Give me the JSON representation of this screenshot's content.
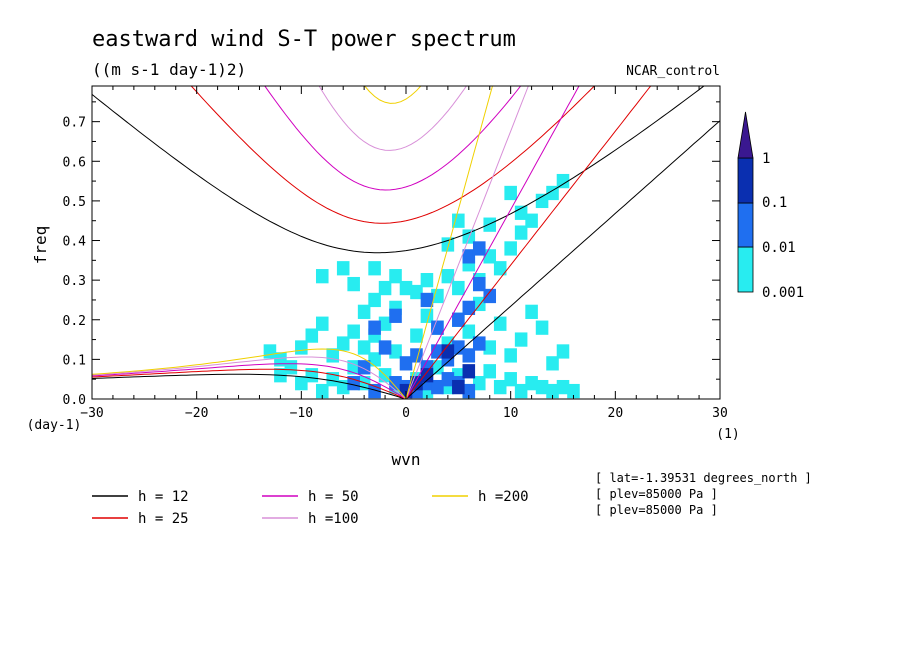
{
  "chart_data": {
    "type": "heatmap",
    "title": "eastward wind S-T power spectrum",
    "subtitle": "((m s-1 day-1)2)",
    "run_label": "NCAR_control",
    "xlabel": "wvn",
    "ylabel": "freq",
    "x_unit": "(1)",
    "y_unit": "(day-1)",
    "xlim": [
      -30,
      30
    ],
    "ylim": [
      0,
      0.79
    ],
    "x_ticks": [
      "-30",
      "-20",
      "-10",
      "0",
      "10",
      "20",
      "30"
    ],
    "y_ticks": [
      "0.0",
      "0.1",
      "0.2",
      "0.3",
      "0.4",
      "0.5",
      "0.6",
      "0.7"
    ],
    "colorbar": {
      "labels": [
        "1",
        "0.1",
        "0.01",
        "0.001"
      ],
      "colors": [
        "#3a1890",
        "#0a2fb0",
        "#1f6ff0",
        "#28ecf0"
      ]
    },
    "dispersion_curves": [
      {
        "label": "h = 12",
        "color": "#000000"
      },
      {
        "label": "h = 25",
        "color": "#e00000"
      },
      {
        "label": "h = 50",
        "color": "#d000c0"
      },
      {
        "label": "h =100",
        "color": "#d890d8"
      },
      {
        "label": "h =200",
        "color": "#f0d000"
      }
    ],
    "meta_lines": [
      "[ lat=-1.39531 degrees_north ]",
      "[ plev=85000 Pa ]",
      "[ plev=85000 Pa ]"
    ],
    "power_cells": [
      {
        "k": -13,
        "f": 0.12,
        "level": 0
      },
      {
        "k": -12,
        "f": 0.1,
        "level": 0
      },
      {
        "k": -11,
        "f": 0.08,
        "level": 0
      },
      {
        "k": -10,
        "f": 0.04,
        "level": 0
      },
      {
        "k": -9,
        "f": 0.06,
        "level": 0
      },
      {
        "k": -8,
        "f": 0.02,
        "level": 0
      },
      {
        "k": -7,
        "f": 0.05,
        "level": 0
      },
      {
        "k": -6,
        "f": 0.03,
        "level": 0
      },
      {
        "k": -5,
        "f": 0.08,
        "level": 0
      },
      {
        "k": -4,
        "f": 0.04,
        "level": 0
      },
      {
        "k": -3,
        "f": 0.1,
        "level": 0
      },
      {
        "k": -2,
        "f": 0.06,
        "level": 0
      },
      {
        "k": -1,
        "f": 0.03,
        "level": 0
      },
      {
        "k": 1,
        "f": 0.05,
        "level": 0
      },
      {
        "k": 2,
        "f": 0.02,
        "level": 0
      },
      {
        "k": 3,
        "f": 0.08,
        "level": 0
      },
      {
        "k": 4,
        "f": 0.03,
        "level": 0
      },
      {
        "k": 5,
        "f": 0.06,
        "level": 0
      },
      {
        "k": 6,
        "f": 0.02,
        "level": 0
      },
      {
        "k": 7,
        "f": 0.04,
        "level": 0
      },
      {
        "k": 8,
        "f": 0.07,
        "level": 0
      },
      {
        "k": 9,
        "f": 0.03,
        "level": 0
      },
      {
        "k": 10,
        "f": 0.05,
        "level": 0
      },
      {
        "k": 11,
        "f": 0.02,
        "level": 0
      },
      {
        "k": 12,
        "f": 0.04,
        "level": 0
      },
      {
        "k": 13,
        "f": 0.03,
        "level": 0
      },
      {
        "k": 14,
        "f": 0.02,
        "level": 0
      },
      {
        "k": 15,
        "f": 0.03,
        "level": 0
      },
      {
        "k": -7,
        "f": 0.11,
        "level": 0
      },
      {
        "k": -6,
        "f": 0.14,
        "level": 0
      },
      {
        "k": -4,
        "f": 0.13,
        "level": 0
      },
      {
        "k": -3,
        "f": 0.16,
        "level": 0
      },
      {
        "k": -2,
        "f": 0.19,
        "level": 0
      },
      {
        "k": -1,
        "f": 0.12,
        "level": 0
      },
      {
        "k": 1,
        "f": 0.16,
        "level": 0
      },
      {
        "k": 2,
        "f": 0.21,
        "level": 0
      },
      {
        "k": 3,
        "f": 0.18,
        "level": 0
      },
      {
        "k": 4,
        "f": 0.14,
        "level": 0
      },
      {
        "k": 5,
        "f": 0.2,
        "level": 0
      },
      {
        "k": 6,
        "f": 0.17,
        "level": 0
      },
      {
        "k": 7,
        "f": 0.24,
        "level": 0
      },
      {
        "k": 8,
        "f": 0.13,
        "level": 0
      },
      {
        "k": 9,
        "f": 0.19,
        "level": 0
      },
      {
        "k": 10,
        "f": 0.11,
        "level": 0
      },
      {
        "k": 11,
        "f": 0.15,
        "level": 0
      },
      {
        "k": -4,
        "f": 0.22,
        "level": 0
      },
      {
        "k": -3,
        "f": 0.25,
        "level": 0
      },
      {
        "k": -2,
        "f": 0.28,
        "level": 0
      },
      {
        "k": -1,
        "f": 0.23,
        "level": 0
      },
      {
        "k": 1,
        "f": 0.27,
        "level": 0
      },
      {
        "k": 2,
        "f": 0.3,
        "level": 0
      },
      {
        "k": 3,
        "f": 0.26,
        "level": 0
      },
      {
        "k": 4,
        "f": 0.31,
        "level": 0
      },
      {
        "k": 5,
        "f": 0.28,
        "level": 0
      },
      {
        "k": 6,
        "f": 0.34,
        "level": 0
      },
      {
        "k": 7,
        "f": 0.3,
        "level": 0
      },
      {
        "k": 8,
        "f": 0.36,
        "level": 0
      },
      {
        "k": 9,
        "f": 0.33,
        "level": 0
      },
      {
        "k": 10,
        "f": 0.38,
        "level": 0
      },
      {
        "k": 11,
        "f": 0.42,
        "level": 0
      },
      {
        "k": 12,
        "f": 0.45,
        "level": 0
      },
      {
        "k": 13,
        "f": 0.5,
        "level": 0
      },
      {
        "k": 14,
        "f": 0.52,
        "level": 0
      },
      {
        "k": 15,
        "f": 0.55,
        "level": 0
      },
      {
        "k": 10,
        "f": 0.52,
        "level": 0
      },
      {
        "k": 11,
        "f": 0.47,
        "level": 0
      },
      {
        "k": -8,
        "f": 0.31,
        "level": 0
      },
      {
        "k": -6,
        "f": 0.33,
        "level": 0
      },
      {
        "k": -5,
        "f": 0.29,
        "level": 0
      },
      {
        "k": -3,
        "f": 0.33,
        "level": 0
      },
      {
        "k": -1,
        "f": 0.31,
        "level": 0
      },
      {
        "k": 0,
        "f": 0.28,
        "level": 0
      },
      {
        "k": -12,
        "f": 0.06,
        "level": 0
      },
      {
        "k": -10,
        "f": 0.13,
        "level": 0
      },
      {
        "k": -9,
        "f": 0.16,
        "level": 0
      },
      {
        "k": -8,
        "f": 0.19,
        "level": 0
      },
      {
        "k": -5,
        "f": 0.17,
        "level": 0
      },
      {
        "k": 12,
        "f": 0.22,
        "level": 0
      },
      {
        "k": 13,
        "f": 0.18,
        "level": 0
      },
      {
        "k": 14,
        "f": 0.09,
        "level": 0
      },
      {
        "k": 15,
        "f": 0.12,
        "level": 0
      },
      {
        "k": 16,
        "f": 0.02,
        "level": 0
      },
      {
        "k": 8,
        "f": 0.44,
        "level": 0
      },
      {
        "k": 6,
        "f": 0.41,
        "level": 0
      },
      {
        "k": 4,
        "f": 0.39,
        "level": 0
      },
      {
        "k": 5,
        "f": 0.45,
        "level": 0
      },
      {
        "k": -1,
        "f": 0.04,
        "level": 1
      },
      {
        "k": 0,
        "f": 0.03,
        "level": 1
      },
      {
        "k": 1,
        "f": 0.02,
        "level": 1
      },
      {
        "k": 2,
        "f": 0.04,
        "level": 1
      },
      {
        "k": 3,
        "f": 0.03,
        "level": 1
      },
      {
        "k": 4,
        "f": 0.05,
        "level": 1
      },
      {
        "k": 5,
        "f": 0.04,
        "level": 1
      },
      {
        "k": 6,
        "f": 0.02,
        "level": 1
      },
      {
        "k": -3,
        "f": 0.02,
        "level": 1
      },
      {
        "k": -5,
        "f": 0.04,
        "level": 1
      },
      {
        "k": 0,
        "f": 0.09,
        "level": 1
      },
      {
        "k": 1,
        "f": 0.11,
        "level": 1
      },
      {
        "k": 2,
        "f": 0.08,
        "level": 1
      },
      {
        "k": 3,
        "f": 0.12,
        "level": 1
      },
      {
        "k": 4,
        "f": 0.1,
        "level": 1
      },
      {
        "k": 5,
        "f": 0.13,
        "level": 1
      },
      {
        "k": 6,
        "f": 0.11,
        "level": 1
      },
      {
        "k": 7,
        "f": 0.14,
        "level": 1
      },
      {
        "k": 3,
        "f": 0.18,
        "level": 1
      },
      {
        "k": 5,
        "f": 0.2,
        "level": 1
      },
      {
        "k": 6,
        "f": 0.23,
        "level": 1
      },
      {
        "k": 7,
        "f": 0.29,
        "level": 1
      },
      {
        "k": 8,
        "f": 0.26,
        "level": 1
      },
      {
        "k": 6,
        "f": 0.36,
        "level": 1
      },
      {
        "k": 7,
        "f": 0.38,
        "level": 1
      },
      {
        "k": -3,
        "f": 0.18,
        "level": 1
      },
      {
        "k": -1,
        "f": 0.21,
        "level": 1
      },
      {
        "k": 2,
        "f": 0.25,
        "level": 1
      },
      {
        "k": -4,
        "f": 0.08,
        "level": 1
      },
      {
        "k": -2,
        "f": 0.13,
        "level": 1
      },
      {
        "k": 1,
        "f": 0.04,
        "level": 2
      },
      {
        "k": 2,
        "f": 0.06,
        "level": 2
      },
      {
        "k": 5,
        "f": 0.03,
        "level": 2
      },
      {
        "k": 6,
        "f": 0.07,
        "level": 2
      },
      {
        "k": 0,
        "f": 0.02,
        "level": 2
      },
      {
        "k": 4,
        "f": 0.12,
        "level": 2
      }
    ]
  }
}
